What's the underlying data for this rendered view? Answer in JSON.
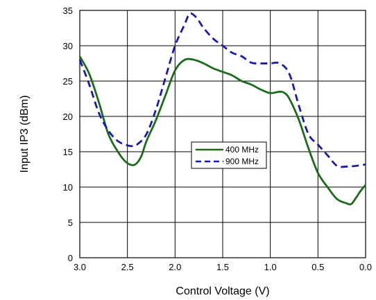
{
  "chart_data": {
    "type": "line",
    "title": "",
    "xlabel": "Control Voltage (V)",
    "ylabel": "Input IP3 (dBm)",
    "xlim": [
      3.0,
      0.0
    ],
    "ylim": [
      0,
      35
    ],
    "x_reversed": true,
    "grid": true,
    "legend_position": "center",
    "x_ticks": [
      "3.0",
      "2.5",
      "2.0",
      "1.5",
      "1.0",
      "0.5",
      "0.0"
    ],
    "x_tick_values": [
      3.0,
      2.5,
      2.0,
      1.5,
      1.0,
      0.5,
      0.0
    ],
    "y_ticks": [
      "0",
      "5",
      "10",
      "15",
      "20",
      "25",
      "30",
      "35"
    ],
    "y_tick_values": [
      0,
      5,
      10,
      15,
      20,
      25,
      30,
      35
    ],
    "series": [
      {
        "name": "400 MHz",
        "color": "#1a6b1a",
        "dash": "solid",
        "x": [
          3.0,
          2.9,
          2.8,
          2.7,
          2.6,
          2.52,
          2.45,
          2.4,
          2.35,
          2.3,
          2.2,
          2.1,
          2.0,
          1.9,
          1.8,
          1.7,
          1.6,
          1.5,
          1.4,
          1.3,
          1.2,
          1.1,
          1.0,
          0.9,
          0.85,
          0.8,
          0.7,
          0.6,
          0.5,
          0.4,
          0.3,
          0.2,
          0.15,
          0.1,
          0.05,
          0.0
        ],
        "y": [
          28.5,
          26.0,
          22.0,
          17.5,
          15.0,
          13.6,
          13.1,
          13.4,
          14.5,
          16.5,
          19.5,
          23.0,
          26.5,
          28.0,
          28.0,
          27.5,
          26.8,
          26.3,
          25.8,
          25.0,
          24.5,
          23.8,
          23.3,
          23.5,
          23.3,
          22.5,
          19.5,
          15.5,
          12.0,
          10.0,
          8.3,
          7.7,
          7.6,
          8.5,
          9.5,
          10.3
        ]
      },
      {
        "name": "900 MHz",
        "color": "#1a1aaa",
        "dash": "dashed",
        "x": [
          3.0,
          2.9,
          2.8,
          2.7,
          2.6,
          2.5,
          2.45,
          2.4,
          2.3,
          2.2,
          2.1,
          2.0,
          1.9,
          1.85,
          1.8,
          1.75,
          1.7,
          1.6,
          1.5,
          1.4,
          1.3,
          1.2,
          1.1,
          1.0,
          0.9,
          0.8,
          0.7,
          0.6,
          0.5,
          0.4,
          0.3,
          0.2,
          0.1,
          0.0
        ],
        "y": [
          28.0,
          24.5,
          20.5,
          18.0,
          16.5,
          15.9,
          15.8,
          16.0,
          17.5,
          21.0,
          25.5,
          30.0,
          33.0,
          34.5,
          34.3,
          33.5,
          32.5,
          31.0,
          30.0,
          29.0,
          28.5,
          27.6,
          27.5,
          27.5,
          27.5,
          26.0,
          21.5,
          17.5,
          16.0,
          14.5,
          13.0,
          12.9,
          13.0,
          13.2
        ]
      }
    ]
  }
}
